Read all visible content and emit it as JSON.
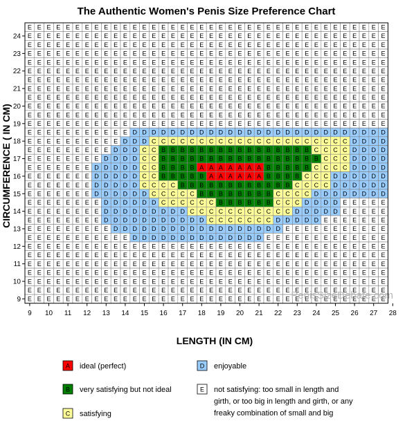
{
  "chart_data": {
    "type": "heatmap",
    "title": "The Authentic Women's Penis Size Preference Chart",
    "xlabel": "LENGTH  (IN CM)",
    "ylabel": "CIRCUMFERENCE ( IN CM)",
    "x_ticks": [
      9,
      10,
      11,
      12,
      13,
      14,
      15,
      16,
      17,
      18,
      19,
      20,
      21,
      22,
      23,
      24,
      25,
      26,
      27,
      28
    ],
    "y_ticks": [
      9,
      10,
      11,
      12,
      13,
      14,
      15,
      16,
      17,
      18,
      19,
      20,
      21,
      22,
      23,
      24
    ],
    "xlim": [
      9,
      28
    ],
    "ylim": [
      9,
      24.5
    ],
    "grid": true,
    "legend_position": "bottom",
    "colors": {
      "A": "#ff0000",
      "B": "#008000",
      "C": "#ffff99",
      "D": "#99ccff",
      "E": "#ffffff"
    },
    "rows": [
      {
        "y": 24.5,
        "cells": "EEEEEEEEEEEEEEEEEEEEEEEEEEEEEEEEEEEEEE"
      },
      {
        "y": 24.0,
        "cells": "EEEEEEEEEEEEEEEEEEEEEEEEEEEEEEEEEEEEEE"
      },
      {
        "y": 23.5,
        "cells": "EEEEEEEEEEEEEEEEEEEEEEEEEEEEEEEEEEEEEE"
      },
      {
        "y": 23.0,
        "cells": "EEEEEEEEEEEEEEEEEEEEEEEEEEEEEEEEEEEEEE"
      },
      {
        "y": 22.5,
        "cells": "EEEEEEEEEEEEEEEEEEEEEEEEEEEEEEEEEEEEEE"
      },
      {
        "y": 22.0,
        "cells": "EEEEEEEEEEEEEEEEEEEEEEEEEEEEEEEEEEEEEE"
      },
      {
        "y": 21.5,
        "cells": "EEEEEEEEEEEEEEEEEEEEEEEEEEEEEEEEEEEEEE"
      },
      {
        "y": 21.0,
        "cells": "EEEEEEEEEEEEEEEEEEEEEEEEEEEEEEEEEEEEEE"
      },
      {
        "y": 20.5,
        "cells": "EEEEEEEEEEEEEEEEEEEEEEEEEEEEEEEEEEEEEE"
      },
      {
        "y": 20.0,
        "cells": "EEEEEEEEEEEEEEEEEEEEEEEEEEEEEEEEEEEEEE"
      },
      {
        "y": 19.5,
        "cells": "EEEEEEEEEEEEEEEEEEEEEEEEEEEEEEEEEEEEEE"
      },
      {
        "y": 19.0,
        "cells": "EEEEEEEEEEEEEEEEEEEEEEEEEEEEEEEEEEEEEE"
      },
      {
        "y": 18.5,
        "cells": "EEEEEEEEEEEDDDDDDDDDDDDDDDDDDDDDDDDDDD"
      },
      {
        "y": 18.0,
        "cells": "EEEEEEEEEEDDDCCCCCCCCCCCCCCCCCCCCCDDDD"
      },
      {
        "y": 17.5,
        "cells": "EEEEEEEEEDDDCCBBBBBBBBBBBBBBBBCCCCDDDD"
      },
      {
        "y": 17.0,
        "cells": "EEEEEEEEDDDDCCBBBBBBBBBBBBBBBBBCCCDDDD"
      },
      {
        "y": 16.5,
        "cells": "EEEEEEEDDDDDCCBBBBAAAAAAABBBBBCCCCDDDD"
      },
      {
        "y": 16.0,
        "cells": "EEEEEEEDDDDDCCBBBBBAAAAAABBBBCCCDDDDDD"
      },
      {
        "y": 15.5,
        "cells": "EEEEEEEDDDDDCCCCBBBBBBBBBBBBCCCCDDDDDD"
      },
      {
        "y": 15.0,
        "cells": "EEEEEEEDDDDDDCCCCCBBBBBBBBCCCCDDDDDDDD"
      },
      {
        "y": 14.5,
        "cells": "EEEEEEEEDDDDDDCCCCCCBBBBBBCCCDDDDEEEEE"
      },
      {
        "y": 14.0,
        "cells": "EEEEEEEEDDDDDDDDDCCCCCCCCCCCDDDDDEEEEE"
      },
      {
        "y": 13.5,
        "cells": "EEEEEEEEDDDDDDDDDDDCCCCCCCDDDDDEEEEEEE"
      },
      {
        "y": 13.0,
        "cells": "EEEEEEEEEDDDDDDDDDDDDDDDDDDEEEEEEEEEEE"
      },
      {
        "y": 12.5,
        "cells": "EEEEEEEEEEEDDDDDDDDDDDDDDEEEEEEEEEEEEE"
      },
      {
        "y": 12.0,
        "cells": "EEEEEEEEEEEEEEEEEEEEEEEEEEEEEEEEEEEEEE"
      },
      {
        "y": 11.5,
        "cells": "EEEEEEEEEEEEEEEEEEEEEEEEEEEEEEEEEEEEEE"
      },
      {
        "y": 11.0,
        "cells": "EEEEEEEEEEEEEEEEEEEEEEEEEEEEEEEEEEEEEE"
      },
      {
        "y": 10.5,
        "cells": "EEEEEEEEEEEEEEEEEEEEEEEEEEEEEEEEEEEEEE"
      },
      {
        "y": 10.0,
        "cells": "EEEEEEEEEEEEEEEEEEEEEEEEEEEEEEEEEEEEEE"
      },
      {
        "y": 9.5,
        "cells": "EEEEEEEEEEEEEEEEEEEEEEEEEEEEEEEEEEEEEE"
      },
      {
        "y": 9.0,
        "cells": "EEEEEEEEEEEEEEEEEEEEEEEEEEEEEEEEEEEEEE"
      }
    ],
    "legend": [
      {
        "letter": "A",
        "label": "ideal (perfect)"
      },
      {
        "letter": "B",
        "label": "very satisfying but not ideal"
      },
      {
        "letter": "C",
        "label": "satisfying"
      },
      {
        "letter": "D",
        "label": "enjoyable"
      },
      {
        "letter": "E",
        "label_lines": [
          "not satisfying: too small in length and",
          "girth, or too big in length and girth, or any",
          "freaky combination of small and big"
        ]
      }
    ],
    "watermark": "PenisSizeDebate.com"
  }
}
